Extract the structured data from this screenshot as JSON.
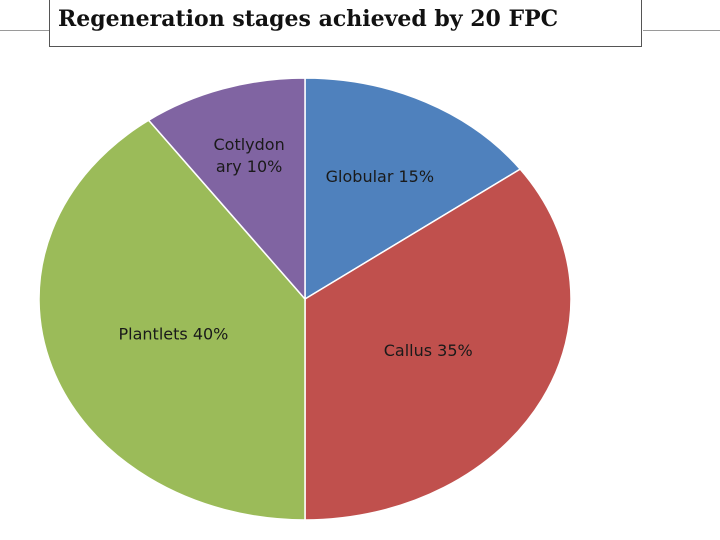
{
  "header": {
    "title": "Regeneration stages achieved by 20 FPC"
  },
  "chart_data": {
    "type": "pie",
    "title": "Regeneration stages achieved by 20 FPC",
    "slices": [
      {
        "name": "Globular",
        "value": 15,
        "color": "#4f81bd",
        "label_lines": [
          "Globular 15%"
        ]
      },
      {
        "name": "Callus",
        "value": 35,
        "color": "#c0504d",
        "label_lines": [
          "Callus 35%"
        ]
      },
      {
        "name": "Plantlets",
        "value": 40,
        "color": "#9bbb59",
        "label_lines": [
          "Plantlets  40%"
        ]
      },
      {
        "name": "Cotlydonary",
        "value": 10,
        "color": "#8064a2",
        "label_lines": [
          "Cotlydon",
          "ary 10%"
        ]
      }
    ]
  }
}
